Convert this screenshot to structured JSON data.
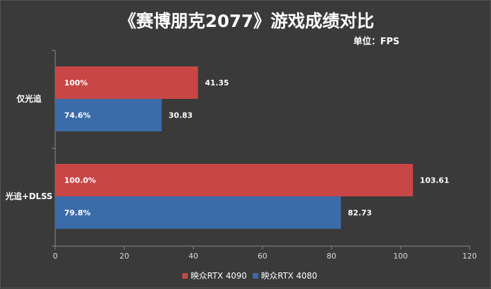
{
  "chart_data": {
    "type": "bar",
    "orientation": "horizontal",
    "title": "《赛博朋克2077》游戏成绩对比",
    "unit_label": "单位：FPS",
    "categories": [
      "仅光追",
      "光追+DLSS"
    ],
    "series": [
      {
        "name": "映众RTX 4090",
        "color": "#c84646",
        "values": [
          41.35,
          103.61
        ],
        "value_labels": [
          "41.35",
          "103.61"
        ],
        "percent_labels": [
          "100%",
          "100.0%"
        ]
      },
      {
        "name": "映众RTX 4080",
        "color": "#3b6ba8",
        "values": [
          30.83,
          82.73
        ],
        "value_labels": [
          "30.83",
          "82.73"
        ],
        "percent_labels": [
          "74.6%",
          "79.8%"
        ]
      }
    ],
    "xlim": [
      0,
      120
    ],
    "x_ticks": [
      "0",
      "20",
      "40",
      "60",
      "80",
      "100",
      "120"
    ],
    "grid": false,
    "legend_position": "bottom"
  }
}
